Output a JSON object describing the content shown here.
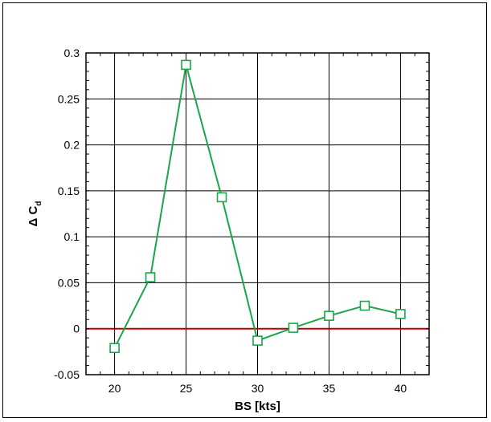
{
  "chart_data": {
    "type": "line",
    "title": "",
    "xlabel": "BS [kts]",
    "ylabel": {
      "prefix": "Δ C",
      "subscript": "d"
    },
    "xlim": [
      18,
      42
    ],
    "ylim": [
      -0.05,
      0.3
    ],
    "xticks": [
      20,
      25,
      30,
      35,
      40
    ],
    "xtick_labels": [
      "20",
      "25",
      "30",
      "35",
      "40"
    ],
    "yticks": [
      -0.05,
      0,
      0.05,
      0.1,
      0.15,
      0.2,
      0.25,
      0.3
    ],
    "ytick_labels": [
      "-0.05",
      "0",
      "0.05",
      "0.1",
      "0.15",
      "0.2",
      "0.25",
      "0.3"
    ],
    "grid": true,
    "series": [
      {
        "marker": "square",
        "color": "#1aa64b",
        "x": [
          20,
          22.5,
          25,
          27.5,
          30,
          32.5,
          35,
          37.5,
          40
        ],
        "y": [
          -0.021,
          0.056,
          0.287,
          0.143,
          -0.013,
          0.001,
          0.014,
          0.025,
          0.016
        ]
      }
    ],
    "reference_line": {
      "y": 0,
      "color": "#c00000"
    }
  }
}
